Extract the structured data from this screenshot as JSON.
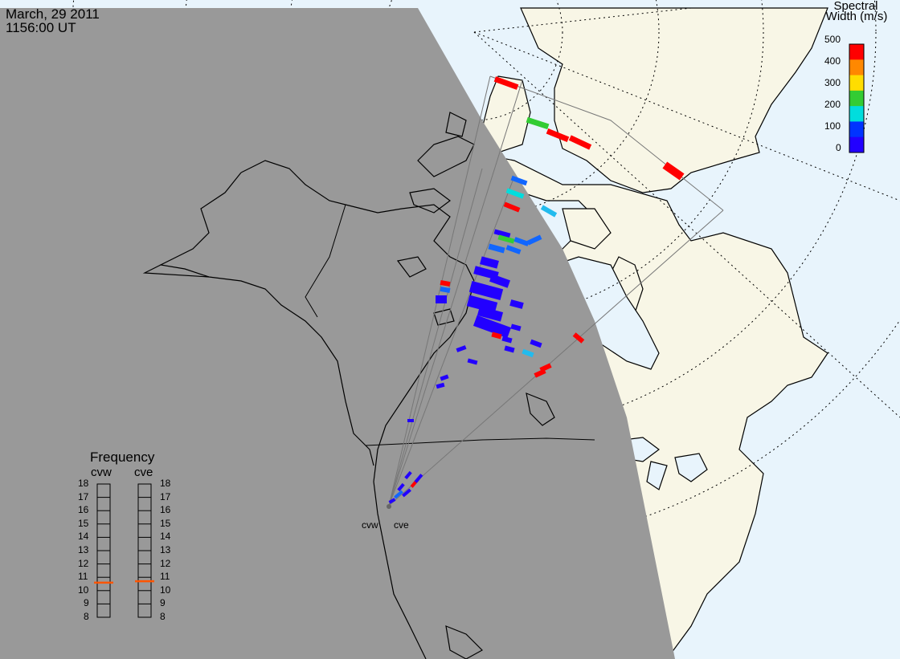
{
  "header": {
    "date": "March, 29 2011",
    "time": "1156:00 UT"
  },
  "colorbar": {
    "title_line1": "Spectral",
    "title_line2": "Width (m/s)",
    "ticks": [
      "500",
      "400",
      "300",
      "200",
      "100",
      "0"
    ],
    "colors": [
      "#ff0000",
      "#ff8800",
      "#ffdd00",
      "#33cc33",
      "#00dddd",
      "#0033ff",
      "#2200ff"
    ]
  },
  "frequency_panel": {
    "title": "Frequency",
    "radars": [
      {
        "label": "cvw",
        "frequency_mhz": 10.6
      },
      {
        "label": "cve",
        "frequency_mhz": 10.7
      }
    ],
    "ticks": [
      "18",
      "17",
      "16",
      "15",
      "14",
      "13",
      "12",
      "11",
      "10",
      "9",
      "8"
    ],
    "indicator_color": "#ff5500"
  },
  "radar_labels": [
    "cvw",
    "cve"
  ],
  "map_colors": {
    "night": "#999999",
    "land_day": "#f8f6e6",
    "ocean_day": "#e8f4fc",
    "coastline": "#000000",
    "fov": "#777777"
  }
}
